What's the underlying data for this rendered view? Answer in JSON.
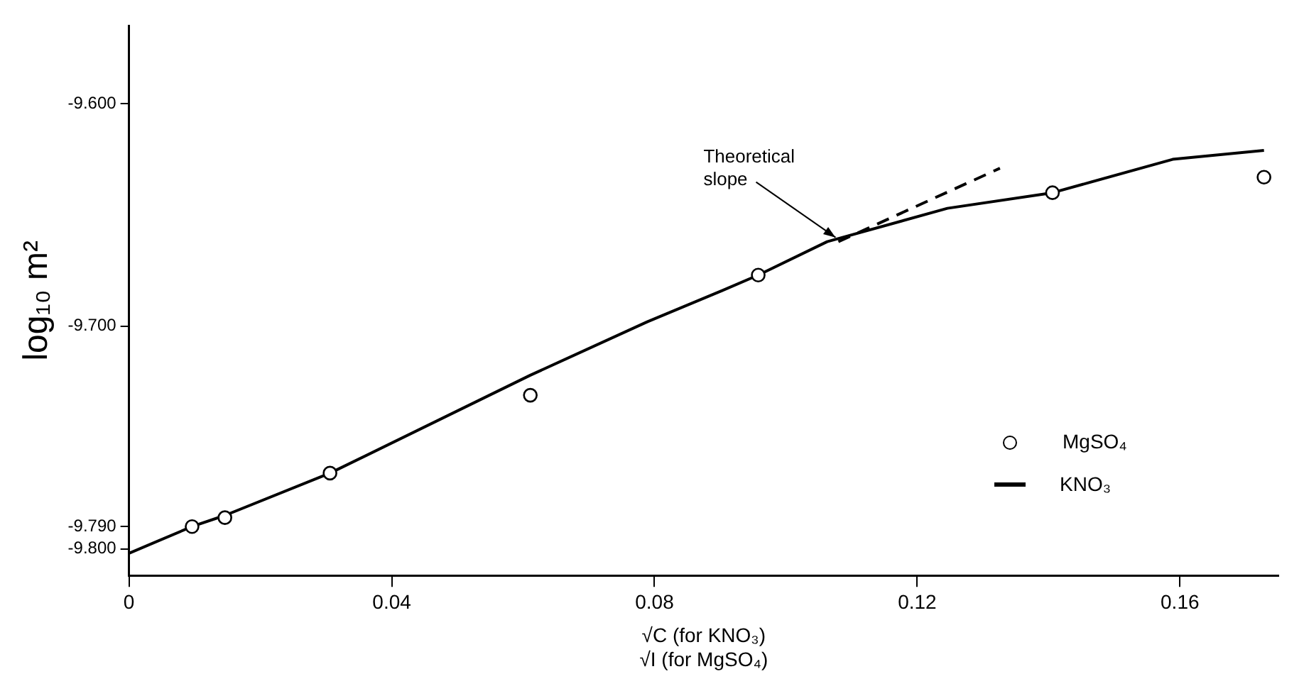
{
  "chart_data": {
    "type": "scatter",
    "xlabel": "√C (for KNO₃)\n√I (for MgSO₄)",
    "ylabel": "log₁₀ m²",
    "xlim": [
      0,
      0.175
    ],
    "xticks": [
      {
        "value": 0,
        "label": "0"
      },
      0.04,
      0.08,
      0.12,
      0.16
    ],
    "ylim": [
      -9.812,
      -9.565
    ],
    "yticks": [
      {
        "value": -9.6,
        "label": "-9.600"
      },
      {
        "value": -9.7,
        "label": "-9.700"
      },
      {
        "value": -9.79,
        "label": "-9.790"
      },
      {
        "value": -9.8,
        "label": "-9.800"
      }
    ],
    "grid": false,
    "legend": "bottom right",
    "series": [
      {
        "name": "MgSO₄",
        "color": "#000000",
        "marker": "circle",
        "x": [
          0.0096,
          0.0146,
          0.0306,
          0.0611,
          0.0958,
          0.1406,
          0.1728
        ],
        "values": [
          -9.79,
          -9.786,
          -9.766,
          -9.731,
          -9.677,
          -9.64,
          -9.633
        ]
      },
      {
        "name": "KNO₃",
        "type": "line",
        "color": "#000000",
        "marker": "none",
        "line_style": "solid",
        "x": [
          0,
          0.0096,
          0.0146,
          0.0306,
          0.0611,
          0.0789,
          0.0903,
          0.0958,
          0.1063,
          0.1246,
          0.1406,
          0.1589,
          0.1728
        ],
        "values": [
          -9.802,
          -9.79,
          -9.785,
          -9.766,
          -9.722,
          -9.698,
          -9.684,
          -9.677,
          -9.662,
          -9.647,
          -9.64,
          -9.625,
          -9.621
        ]
      },
      {
        "type": "line",
        "color": "#000000",
        "marker": "none",
        "line_style": "dashed",
        "x": [
          0.108,
          0.1326
        ],
        "values": [
          -9.662,
          -9.629
        ]
      }
    ],
    "annotations": [
      {
        "text": "Theoretical slope",
        "x": 0.108,
        "y": -9.662
      }
    ]
  }
}
